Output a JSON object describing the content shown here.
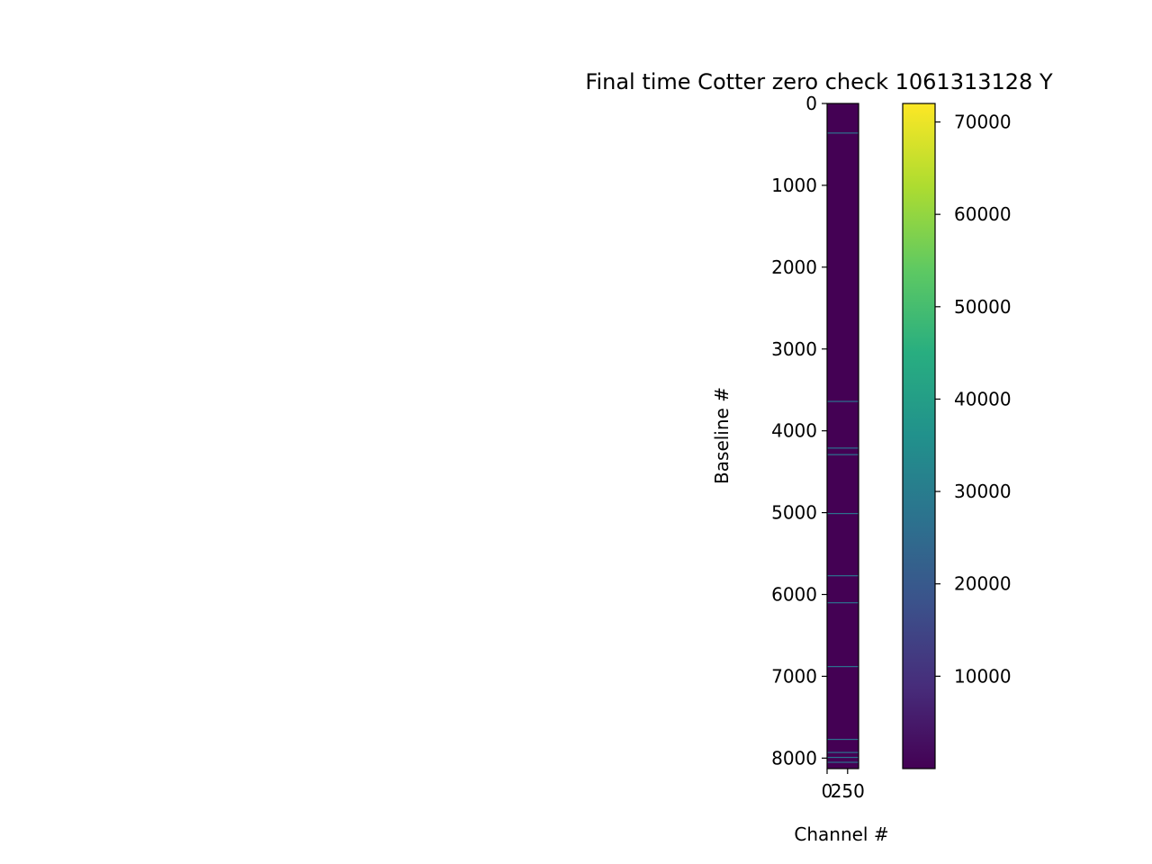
{
  "chart_data": {
    "type": "heatmap",
    "title": "Final time Cotter zero check 1061313128 Y",
    "xlabel": "Channel #",
    "ylabel": "Baseline #",
    "x_range": [
      0,
      384
    ],
    "y_range": [
      8128,
      0
    ],
    "xticks": [
      0,
      250
    ],
    "xtick_labels": [
      "0",
      "250"
    ],
    "yticks": [
      0,
      1000,
      2000,
      3000,
      4000,
      5000,
      6000,
      7000,
      8000
    ],
    "ytick_labels": [
      "0",
      "1000",
      "2000",
      "3000",
      "4000",
      "5000",
      "6000",
      "7000",
      "8000"
    ],
    "background_value": 0,
    "bright_rows": [
      {
        "baseline": 360,
        "value": 30000
      },
      {
        "baseline": 3640,
        "value": 30000
      },
      {
        "baseline": 4210,
        "value": 30000
      },
      {
        "baseline": 4290,
        "value": 30000
      },
      {
        "baseline": 5010,
        "value": 30000
      },
      {
        "baseline": 5770,
        "value": 30000
      },
      {
        "baseline": 6100,
        "value": 30000
      },
      {
        "baseline": 6880,
        "value": 30000
      },
      {
        "baseline": 7770,
        "value": 30000
      },
      {
        "baseline": 7930,
        "value": 30000
      },
      {
        "baseline": 7990,
        "value": 30000
      },
      {
        "baseline": 8050,
        "value": 30000
      }
    ],
    "colorbar": {
      "colormap": "viridis",
      "range": [
        0,
        72000
      ],
      "ticks": [
        10000,
        20000,
        30000,
        40000,
        50000,
        60000,
        70000
      ],
      "tick_labels": [
        "10000",
        "20000",
        "30000",
        "40000",
        "50000",
        "60000",
        "70000"
      ]
    }
  }
}
